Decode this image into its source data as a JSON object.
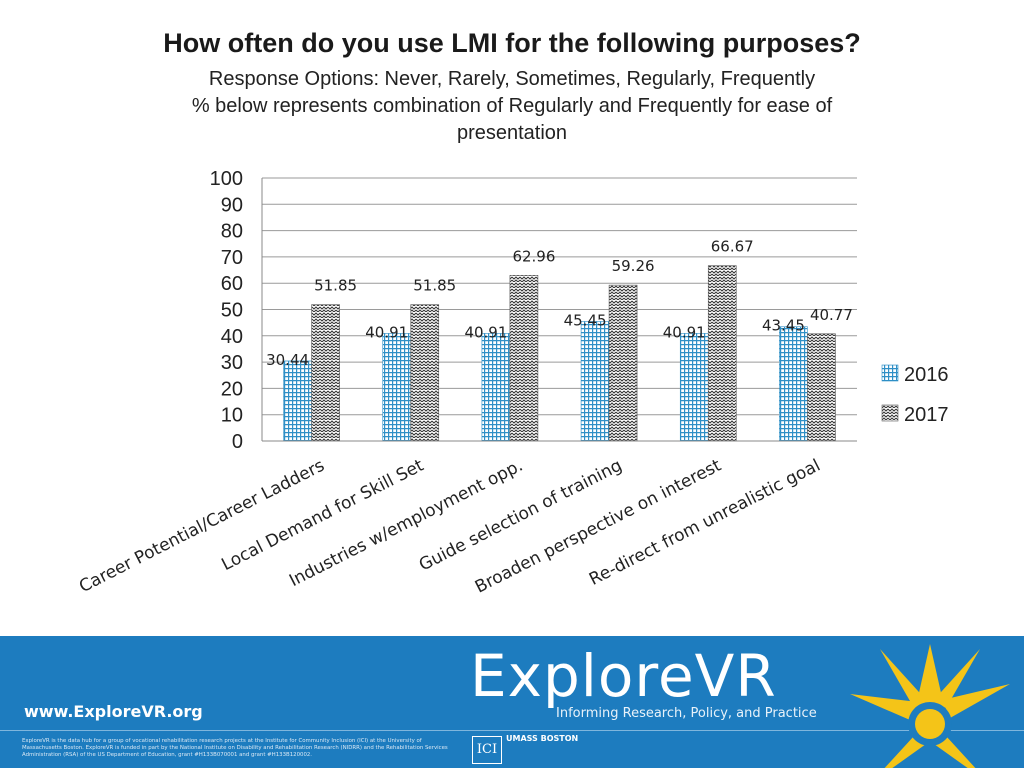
{
  "header": {
    "title": "How often do you use LMI for the following purposes?",
    "subtitle_lines": [
      "Response Options: Never, Rarely, Sometimes, Regularly, Frequently",
      "% below represents combination of Regularly and Frequently for ease of",
      "presentation"
    ]
  },
  "chart_data": {
    "type": "bar",
    "categories": [
      "Career Potential/Career Ladders",
      "Local Demand for Skill Set",
      "Industries w/employment opp.",
      "Guide selection of training",
      "Broaden perspective on interest",
      "Re-direct from unrealistic goal"
    ],
    "series": [
      {
        "name": "2016",
        "values": [
          30.44,
          40.91,
          40.91,
          45.45,
          40.91,
          43.45
        ],
        "color": "#2f8fc6",
        "pattern": "grid"
      },
      {
        "name": "2017",
        "values": [
          51.85,
          51.85,
          62.96,
          59.26,
          66.67,
          40.77
        ],
        "color": "#333333",
        "pattern": "zigzag"
      }
    ],
    "ylim": [
      0,
      100
    ],
    "yticks": [
      "0",
      "10",
      "20",
      "30",
      "40",
      "50",
      "60",
      "70",
      "80",
      "90",
      "100"
    ],
    "data_labels": true,
    "grid": true,
    "legend_position": "right",
    "xlabel": "",
    "ylabel": ""
  },
  "footer": {
    "url": "www.ExploreVR.org",
    "logo_text": "ExploreVR",
    "tagline": "Informing Research, Policy, and Practice",
    "institute_mark": "ICI",
    "university_mark": "UMASS BOSTON",
    "fine_print": "ExploreVR is the data hub for a group of vocational rehabilitation research projects at the Institute for Community Inclusion (ICI) at the University of Massachusetts Boston. ExploreVR is funded in part by the National Institute on Disability and Rehabilitation Research (NIDRR) and the Rehabilitation Services Administration (RSA) of the US Department of Education, grant #H133B070001 and grant #H133B120002.",
    "colors": {
      "band": "#1d7cbf",
      "sun": "#f4c418"
    }
  }
}
